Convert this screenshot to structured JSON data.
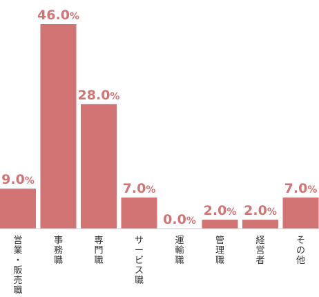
{
  "chart_data": {
    "type": "bar",
    "categories": [
      "営業・販売職",
      "事務職",
      "専門職",
      "サービス職",
      "運輸職",
      "管理職",
      "経営者",
      "その他"
    ],
    "values": [
      9.0,
      46.0,
      28.0,
      7.0,
      0.0,
      2.0,
      2.0,
      7.0
    ],
    "value_suffix": "%",
    "ylim": [
      0,
      46
    ],
    "grid": false,
    "legend": "none"
  },
  "colors": {
    "bar": "#d37474",
    "label": "#d37474",
    "axis": "#c8c8c8",
    "text": "#333333"
  }
}
